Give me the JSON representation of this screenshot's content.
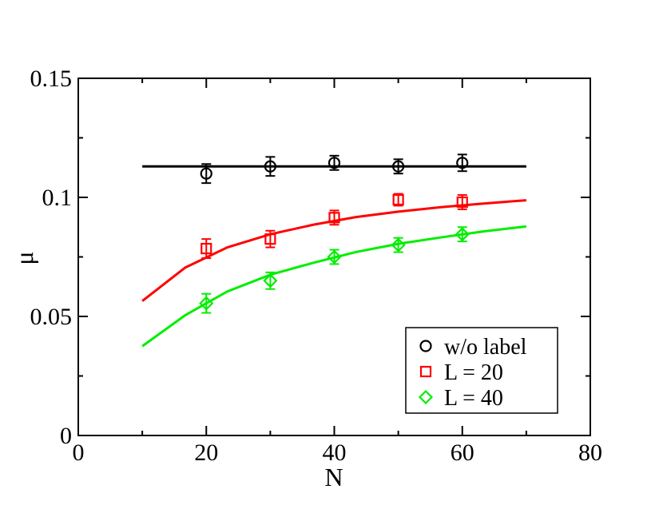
{
  "chart_data": {
    "type": "scatter",
    "title": "",
    "xlabel": "N",
    "ylabel": "μ",
    "xlim": [
      0,
      80
    ],
    "ylim": [
      0,
      0.15
    ],
    "x_ticks": [
      0,
      20,
      40,
      60,
      80
    ],
    "x_tick_labels": [
      "0",
      "20",
      "40",
      "60",
      "80"
    ],
    "y_ticks": [
      0,
      0.05,
      0.1,
      0.15
    ],
    "y_tick_labels": [
      "0",
      "0.05",
      "0.1",
      "0.15"
    ],
    "grid": false,
    "legend_position": "bottom-right",
    "series": [
      {
        "name": "w/o label",
        "marker": "circle",
        "color": "#000000",
        "points": [
          {
            "x": 20,
            "y": 0.11,
            "err": 0.004
          },
          {
            "x": 30,
            "y": 0.113,
            "err": 0.004
          },
          {
            "x": 40,
            "y": 0.1145,
            "err": 0.003
          },
          {
            "x": 50,
            "y": 0.113,
            "err": 0.003
          },
          {
            "x": 60,
            "y": 0.1145,
            "err": 0.0035
          }
        ],
        "fit": [
          [
            10,
            0.113
          ],
          [
            70,
            0.113
          ]
        ]
      },
      {
        "name": "L = 20",
        "marker": "square",
        "color": "#ff0000",
        "points": [
          {
            "x": 20,
            "y": 0.0785,
            "err": 0.004
          },
          {
            "x": 30,
            "y": 0.0825,
            "err": 0.0035
          },
          {
            "x": 40,
            "y": 0.0915,
            "err": 0.003
          },
          {
            "x": 50,
            "y": 0.099,
            "err": 0.0025
          },
          {
            "x": 60,
            "y": 0.098,
            "err": 0.003
          }
        ],
        "fit": [
          [
            10,
            0.0565
          ],
          [
            16.7,
            0.0705
          ],
          [
            23.3,
            0.079
          ],
          [
            30,
            0.0845
          ],
          [
            36.7,
            0.0885
          ],
          [
            43.3,
            0.0917
          ],
          [
            50,
            0.094
          ],
          [
            56.7,
            0.0959
          ],
          [
            63.3,
            0.0974
          ],
          [
            70,
            0.0988
          ]
        ]
      },
      {
        "name": "L = 40",
        "marker": "diamond",
        "color": "#00ee00",
        "points": [
          {
            "x": 20,
            "y": 0.0555,
            "err": 0.004
          },
          {
            "x": 30,
            "y": 0.065,
            "err": 0.0035
          },
          {
            "x": 40,
            "y": 0.075,
            "err": 0.003
          },
          {
            "x": 50,
            "y": 0.08,
            "err": 0.003
          },
          {
            "x": 60,
            "y": 0.0845,
            "err": 0.003
          }
        ],
        "fit": [
          [
            10,
            0.0375
          ],
          [
            16.7,
            0.0505
          ],
          [
            23.3,
            0.0605
          ],
          [
            30,
            0.0675
          ],
          [
            36.7,
            0.0725
          ],
          [
            43.3,
            0.077
          ],
          [
            50,
            0.0805
          ],
          [
            56.7,
            0.0832
          ],
          [
            63.3,
            0.0857
          ],
          [
            70,
            0.0878
          ]
        ]
      }
    ]
  }
}
